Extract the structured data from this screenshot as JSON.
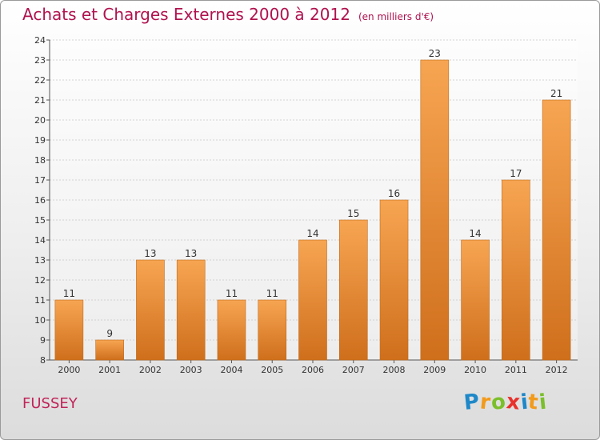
{
  "chart_data": {
    "type": "bar",
    "title": "Achats et Charges Externes 2000 à 2012",
    "subtitle": "(en milliers d'€)",
    "categories": [
      "2000",
      "2001",
      "2002",
      "2003",
      "2004",
      "2005",
      "2006",
      "2007",
      "2008",
      "2009",
      "2010",
      "2011",
      "2012"
    ],
    "values": [
      11,
      9,
      13,
      13,
      11,
      11,
      14,
      15,
      16,
      23,
      14,
      17,
      21
    ],
    "ylim": [
      8,
      24
    ],
    "yticks": [
      8,
      9,
      10,
      11,
      12,
      13,
      14,
      15,
      16,
      17,
      18,
      19,
      20,
      21,
      22,
      23,
      24
    ],
    "grid": true,
    "bar_color_top": "#f7a552",
    "bar_color_bottom": "#cf6f1c"
  },
  "footer": {
    "commune": "FUSSEY",
    "logo_letters": [
      "P",
      "r",
      "o",
      "x",
      "i",
      "t",
      "i"
    ],
    "logo_colors": [
      "#1e88c8",
      "#f29a1a",
      "#7bbf2a",
      "#e8312c",
      "#1e88c8",
      "#f29a1a",
      "#7bbf2a"
    ]
  }
}
